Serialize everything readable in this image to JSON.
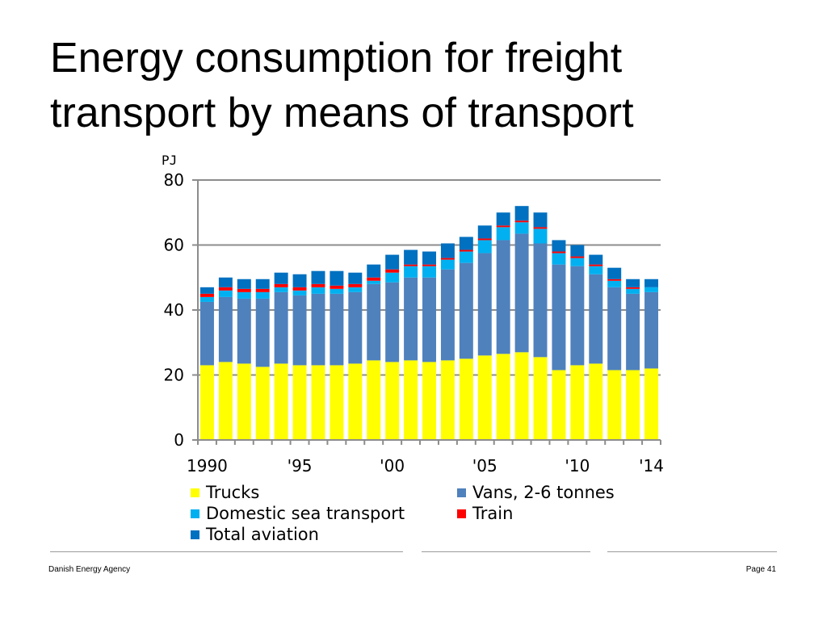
{
  "slide": {
    "title_line1": "Energy consumption for freight",
    "title_line2": "transport by means of transport",
    "footer_left": "Danish Energy Agency",
    "footer_right": "Page 41"
  },
  "chart_data": {
    "type": "bar",
    "stacked": true,
    "title": "Energy consumption for freight transport by means of transport",
    "ylabel": "PJ",
    "xlabel": "",
    "ylim": [
      0,
      80
    ],
    "yticks": [
      "0",
      "20",
      "40",
      "60",
      "80"
    ],
    "grid": true,
    "legend_position": "bottom",
    "categories": [
      "1990",
      "1991",
      "1992",
      "1993",
      "1994",
      "1995",
      "1996",
      "1997",
      "1998",
      "1999",
      "2000",
      "2001",
      "2002",
      "2003",
      "2004",
      "2005",
      "2006",
      "2007",
      "2008",
      "2009",
      "2010",
      "2011",
      "2012",
      "2013",
      "2014"
    ],
    "x_tick_labels": [
      {
        "index": 0,
        "label": "1990"
      },
      {
        "index": 5,
        "label": "'95"
      },
      {
        "index": 10,
        "label": "'00"
      },
      {
        "index": 15,
        "label": "'05"
      },
      {
        "index": 20,
        "label": "'10"
      },
      {
        "index": 24,
        "label": "'14"
      }
    ],
    "series": [
      {
        "name": "Trucks",
        "color": "#ffff00",
        "values": [
          23.0,
          24.0,
          23.5,
          22.5,
          23.5,
          23.0,
          23.0,
          23.0,
          23.5,
          24.5,
          24.0,
          24.5,
          24.0,
          24.5,
          25.0,
          26.0,
          26.5,
          27.0,
          25.5,
          21.5,
          23.0,
          23.5,
          21.5,
          21.5,
          22.0
        ]
      },
      {
        "name": "Vans, 2-6 tonnes",
        "color": "#4f81bd",
        "values": [
          19.5,
          20.0,
          20.0,
          21.0,
          22.0,
          21.5,
          22.0,
          22.0,
          22.0,
          23.5,
          24.5,
          25.5,
          26.0,
          28.0,
          29.5,
          31.5,
          35.0,
          36.5,
          35.0,
          32.5,
          30.5,
          27.5,
          25.5,
          23.5,
          23.5
        ]
      },
      {
        "name": "Domestic sea transport",
        "color": "#00b0f0",
        "values": [
          1.5,
          2.0,
          2.0,
          2.0,
          1.5,
          1.5,
          2.0,
          1.5,
          1.5,
          1.0,
          3.0,
          3.5,
          3.5,
          3.0,
          3.5,
          4.0,
          4.0,
          3.5,
          4.5,
          3.5,
          2.5,
          2.5,
          2.0,
          1.5,
          1.5
        ]
      },
      {
        "name": "Train",
        "color": "#ff0000",
        "values": [
          1.0,
          1.0,
          1.0,
          1.0,
          1.0,
          1.0,
          1.0,
          1.0,
          1.0,
          1.0,
          1.0,
          0.5,
          0.5,
          0.5,
          0.5,
          0.5,
          0.5,
          0.5,
          0.5,
          0.5,
          0.5,
          0.5,
          0.5,
          0.5,
          0.0
        ]
      },
      {
        "name": "Total aviation",
        "color": "#0070c0",
        "values": [
          2.0,
          3.0,
          3.0,
          3.0,
          3.5,
          4.0,
          4.0,
          4.5,
          3.5,
          4.0,
          4.5,
          4.5,
          4.0,
          4.5,
          4.0,
          4.0,
          4.0,
          4.5,
          4.5,
          3.5,
          3.5,
          3.0,
          3.5,
          2.5,
          2.5
        ]
      }
    ]
  }
}
